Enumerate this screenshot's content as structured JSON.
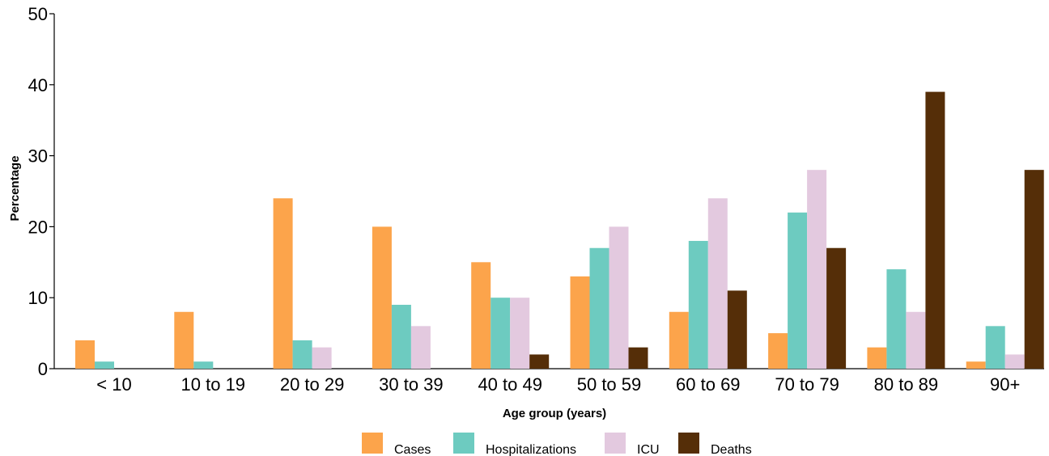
{
  "chart_data": {
    "type": "bar",
    "title": "",
    "xlabel": "Age group (years)",
    "ylabel": "Percentage",
    "ylim": [
      0,
      50
    ],
    "yticks": [
      "0",
      "10",
      "20",
      "30",
      "40",
      "50"
    ],
    "grid": false,
    "legend_position": "bottom",
    "categories": [
      "< 10",
      "10 to 19",
      "20 to 29",
      "30 to 39",
      "40 to 49",
      "50 to 59",
      "60 to 69",
      "70 to 79",
      "80 to 89",
      "90+"
    ],
    "series": [
      {
        "name": "Cases",
        "color": "#FCA44B",
        "values": [
          4,
          8,
          24,
          20,
          15,
          13,
          8,
          5,
          3,
          1
        ]
      },
      {
        "name": "Hospitalizations",
        "color": "#6DCBC0",
        "values": [
          1,
          1,
          4,
          9,
          10,
          17,
          18,
          22,
          14,
          6
        ]
      },
      {
        "name": "ICU",
        "color": "#E3C9DF",
        "values": [
          0,
          0,
          3,
          6,
          10,
          20,
          24,
          28,
          8,
          2
        ]
      },
      {
        "name": "Deaths",
        "color": "#552E08",
        "values": [
          0,
          0,
          0,
          0,
          2,
          3,
          11,
          17,
          39,
          28
        ]
      }
    ]
  }
}
